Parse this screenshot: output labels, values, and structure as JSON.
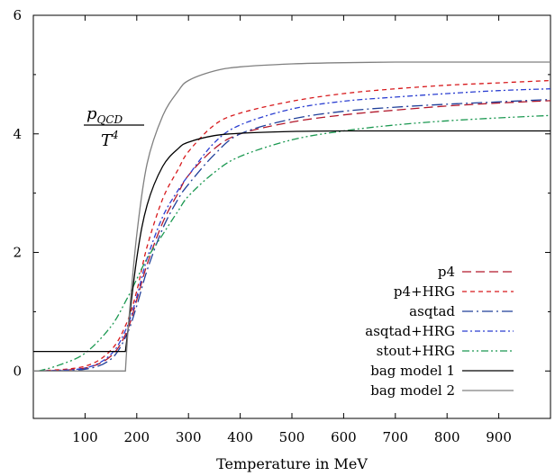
{
  "chart_data": {
    "type": "line",
    "xlabel": "Temperature in MeV",
    "ylabel": "",
    "xlim": [
      0,
      1000
    ],
    "ylim": [
      -0.8,
      6
    ],
    "x_ticks": [
      "100",
      "200",
      "300",
      "400",
      "500",
      "600",
      "700",
      "800",
      "900"
    ],
    "y_ticks": [
      "0",
      "2",
      "4",
      "6"
    ],
    "grid": false,
    "legend_position": "bottom-right",
    "annotation": {
      "numerator": "p",
      "numerator_sub": "QCD",
      "denominator": "T",
      "denominator_sup": "4"
    },
    "series": [
      {
        "name": "p4",
        "color": "#b2182b",
        "dash": "10,5",
        "x": [
          10,
          100,
          150,
          180,
          200,
          220,
          250,
          280,
          300,
          350,
          400,
          500,
          600,
          700,
          800,
          900,
          1000
        ],
        "y": [
          0.0,
          0.05,
          0.25,
          0.65,
          1.2,
          1.8,
          2.5,
          3.0,
          3.3,
          3.75,
          4.0,
          4.2,
          4.32,
          4.4,
          4.47,
          4.52,
          4.56
        ]
      },
      {
        "name": "p4+HRG",
        "color": "#d7191c",
        "dash": "5,4",
        "x": [
          10,
          100,
          150,
          180,
          200,
          220,
          250,
          280,
          300,
          350,
          400,
          500,
          600,
          700,
          800,
          900,
          1000
        ],
        "y": [
          0.0,
          0.08,
          0.35,
          0.8,
          1.35,
          2.1,
          2.9,
          3.4,
          3.7,
          4.15,
          4.35,
          4.55,
          4.68,
          4.76,
          4.82,
          4.86,
          4.9
        ]
      },
      {
        "name": "asqtad",
        "color": "#1f3f99",
        "dash": "12,4,2,4",
        "x": [
          10,
          100,
          150,
          180,
          200,
          220,
          250,
          280,
          300,
          350,
          400,
          500,
          600,
          700,
          800,
          900,
          1000
        ],
        "y": [
          0.0,
          0.03,
          0.2,
          0.6,
          1.1,
          1.7,
          2.4,
          2.9,
          3.15,
          3.65,
          4.0,
          4.25,
          4.38,
          4.45,
          4.5,
          4.54,
          4.58
        ]
      },
      {
        "name": "asqtad+HRG",
        "color": "#2b3fd1",
        "dash": "6,3,2,3",
        "x": [
          10,
          100,
          150,
          180,
          200,
          220,
          250,
          280,
          300,
          350,
          400,
          500,
          600,
          700,
          800,
          900,
          1000
        ],
        "y": [
          0.0,
          0.05,
          0.28,
          0.72,
          1.25,
          1.9,
          2.6,
          3.05,
          3.3,
          3.85,
          4.15,
          4.42,
          4.55,
          4.62,
          4.68,
          4.73,
          4.76
        ]
      },
      {
        "name": "stout+HRG",
        "color": "#1a9850",
        "dash": "8,3,2,3,2,3",
        "x": [
          10,
          50,
          100,
          150,
          180,
          200,
          220,
          250,
          280,
          300,
          350,
          400,
          500,
          600,
          700,
          800,
          900,
          1000
        ],
        "y": [
          0.0,
          0.1,
          0.3,
          0.75,
          1.2,
          1.55,
          1.9,
          2.3,
          2.7,
          2.95,
          3.35,
          3.62,
          3.9,
          4.05,
          4.15,
          4.22,
          4.27,
          4.31
        ]
      },
      {
        "name": "bag model 1",
        "color": "#000000",
        "dash": "",
        "x": [
          0,
          178,
          178,
          200,
          220,
          250,
          280,
          300,
          350,
          400,
          500,
          600,
          700,
          800,
          900,
          1000
        ],
        "y": [
          0.33,
          0.33,
          0.33,
          1.9,
          2.8,
          3.45,
          3.75,
          3.86,
          3.97,
          4.01,
          4.04,
          4.05,
          4.05,
          4.05,
          4.05,
          4.05
        ]
      },
      {
        "name": "bag model 2",
        "color": "#808080",
        "dash": "",
        "x": [
          0,
          178,
          178,
          185,
          200,
          220,
          250,
          280,
          300,
          350,
          400,
          500,
          600,
          700,
          800,
          900,
          1000
        ],
        "y": [
          0.0,
          0.0,
          0.0,
          0.9,
          2.3,
          3.5,
          4.3,
          4.72,
          4.9,
          5.06,
          5.13,
          5.18,
          5.2,
          5.21,
          5.21,
          5.21,
          5.21
        ]
      }
    ]
  }
}
